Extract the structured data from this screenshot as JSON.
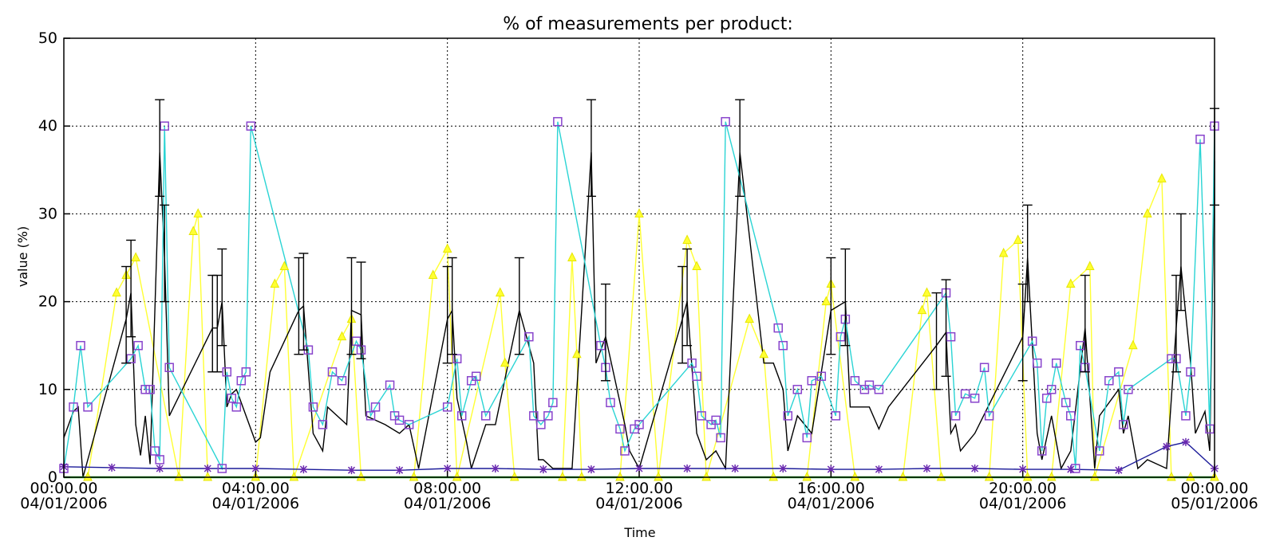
{
  "chart_data": {
    "type": "line",
    "title": "% of measurements per product:",
    "xlabel": "Time",
    "ylabel": "value (%)",
    "ylim": [
      0,
      50
    ],
    "yticks": [
      0,
      10,
      20,
      30,
      40,
      50
    ],
    "xlim_hours": [
      0,
      24
    ],
    "xticks": [
      {
        "hour": 0,
        "time": "00:00.00",
        "date": "04/01/2006"
      },
      {
        "hour": 4,
        "time": "04:00.00",
        "date": "04/01/2006"
      },
      {
        "hour": 8,
        "time": "08:00.00",
        "date": "04/01/2006"
      },
      {
        "hour": 12,
        "time": "12:00.00",
        "date": "04/01/2006"
      },
      {
        "hour": 16,
        "time": "16:00.00",
        "date": "04/01/2006"
      },
      {
        "hour": 20,
        "time": "20:00.00",
        "date": "04/01/2006"
      },
      {
        "hour": 24,
        "time": "00:00.00",
        "date": "05/01/2006"
      }
    ],
    "grid": true,
    "colors": {
      "black_series": "#000000",
      "cyan_series": "#2ad4d4",
      "yellow_series": "#ffff33",
      "green_series": "#33cc33",
      "navy_series": "#1a1a99",
      "square_marker": "#8844cc",
      "star_marker": "#6a2ab0"
    },
    "series": [
      {
        "marker": "none",
        "color": "black_series",
        "x": [
          0.0,
          0.2,
          0.3,
          0.4,
          1.3,
          1.4,
          1.5,
          1.6,
          1.7,
          1.8,
          2.0,
          2.1,
          2.2,
          3.1,
          3.2,
          3.3,
          3.4,
          3.5,
          3.6,
          4.0,
          4.1,
          4.3,
          4.9,
          5.0,
          5.2,
          5.4,
          5.5,
          5.9,
          6.0,
          6.2,
          6.3,
          6.7,
          7.0,
          7.2,
          7.4,
          8.0,
          8.1,
          8.2,
          8.4,
          8.5,
          8.8,
          9.0,
          9.5,
          9.8,
          9.9,
          10.0,
          10.2,
          10.5,
          10.6,
          11.0,
          11.1,
          11.3,
          11.7,
          11.8,
          12.0,
          12.9,
          13.0,
          13.2,
          13.4,
          13.6,
          13.8,
          14.1,
          14.6,
          14.8,
          15.0,
          15.1,
          15.3,
          15.6,
          16.0,
          16.3,
          16.4,
          16.8,
          17.0,
          17.2,
          18.2,
          18.4,
          18.5,
          18.6,
          18.7,
          19.0,
          20.0,
          20.1,
          20.3,
          20.4,
          20.6,
          20.8,
          21.0,
          21.3,
          21.4,
          21.5,
          21.6,
          22.0,
          22.1,
          22.2,
          22.4,
          22.6,
          23.0,
          23.2,
          23.3,
          23.5,
          23.6,
          23.8,
          23.9,
          24.0
        ],
        "y": [
          4.5,
          7.5,
          8.0,
          0.0,
          18.0,
          21.0,
          6.0,
          2.5,
          7.0,
          1.5,
          37.0,
          25.0,
          7.0,
          17.0,
          17.0,
          20.0,
          8.0,
          9.5,
          10.0,
          4.0,
          4.5,
          12.0,
          19.0,
          19.5,
          5.0,
          3.0,
          8.0,
          6.0,
          19.0,
          18.5,
          7.0,
          6.0,
          5.0,
          6.0,
          1.0,
          18.0,
          19.0,
          9.0,
          4.0,
          1.0,
          6.0,
          6.0,
          19.0,
          13.0,
          2.0,
          2.0,
          1.0,
          1.0,
          1.0,
          37.0,
          13.0,
          16.0,
          6.0,
          3.0,
          1.0,
          18.0,
          20.0,
          5.0,
          2.0,
          3.0,
          1.0,
          37.0,
          13.0,
          13.0,
          10.0,
          3.0,
          7.0,
          5.0,
          19.0,
          20.0,
          8.0,
          8.0,
          5.5,
          8.0,
          15.0,
          16.5,
          5.0,
          6.0,
          3.0,
          5.0,
          16.0,
          25.0,
          5.0,
          2.0,
          7.0,
          1.0,
          3.0,
          17.0,
          9.0,
          1.0,
          7.0,
          10.0,
          5.0,
          7.0,
          1.0,
          2.0,
          1.0,
          17.0,
          24.0,
          13.0,
          5.0,
          7.5,
          3.0,
          36.0
        ]
      },
      {
        "marker": "square",
        "color": "cyan_series",
        "x": [
          0.0,
          0.2,
          0.35,
          0.5,
          1.4,
          1.55,
          1.7,
          1.8,
          1.9,
          2.0,
          2.1,
          2.2,
          3.3,
          3.4,
          3.5,
          3.6,
          3.7,
          3.8,
          3.9,
          5.1,
          5.2,
          5.4,
          5.6,
          5.8,
          6.1,
          6.2,
          6.4,
          6.5,
          6.8,
          6.9,
          7.0,
          7.2,
          8.0,
          8.2,
          8.3,
          8.5,
          8.6,
          8.8,
          9.7,
          9.8,
          9.95,
          10.1,
          10.2,
          10.3,
          11.2,
          11.3,
          11.4,
          11.6,
          11.7,
          11.9,
          12.0,
          13.1,
          13.2,
          13.3,
          13.5,
          13.6,
          13.7,
          13.8,
          14.9,
          15.0,
          15.1,
          15.3,
          15.5,
          15.6,
          15.8,
          16.1,
          16.2,
          16.3,
          16.5,
          16.7,
          16.8,
          17.0,
          18.4,
          18.5,
          18.6,
          18.8,
          19.0,
          19.2,
          19.3,
          20.2,
          20.3,
          20.4,
          20.5,
          20.6,
          20.7,
          20.9,
          21.0,
          21.1,
          21.2,
          21.3,
          21.6,
          21.8,
          22.0,
          22.1,
          22.2,
          23.1,
          23.2,
          23.4,
          23.5,
          23.7,
          23.9,
          24.0
        ],
        "y": [
          1.0,
          8.0,
          15.0,
          8.0,
          13.5,
          15.0,
          10.0,
          10.0,
          3.0,
          2.0,
          40.0,
          12.5,
          1.0,
          12.0,
          9.0,
          8.0,
          11.0,
          12.0,
          40.0,
          14.5,
          8.0,
          6.0,
          12.0,
          11.0,
          15.5,
          14.5,
          7.0,
          8.0,
          10.5,
          7.0,
          6.5,
          6.0,
          8.0,
          13.5,
          7.0,
          11.0,
          11.5,
          7.0,
          16.0,
          7.0,
          6.0,
          7.0,
          8.5,
          40.5,
          15.0,
          12.5,
          8.5,
          5.5,
          3.0,
          5.5,
          6.0,
          13.0,
          11.5,
          7.0,
          6.0,
          6.5,
          4.5,
          40.5,
          17.0,
          15.0,
          7.0,
          10.0,
          4.5,
          11.0,
          11.5,
          7.0,
          16.0,
          18.0,
          11.0,
          10.0,
          10.5,
          10.0,
          21.0,
          16.0,
          7.0,
          9.5,
          9.0,
          12.5,
          7.0,
          15.5,
          13.0,
          3.0,
          9.0,
          10.0,
          13.0,
          8.5,
          7.0,
          1.0,
          15.0,
          12.5,
          3.0,
          11.0,
          12.0,
          6.0,
          10.0,
          13.5,
          13.5,
          7.0,
          12.0,
          38.5,
          5.5,
          40.0
        ]
      },
      {
        "marker": "triangle",
        "color": "yellow_series",
        "x": [
          0.5,
          1.1,
          1.3,
          1.5,
          2.4,
          2.7,
          2.8,
          3.0,
          4.0,
          4.4,
          4.6,
          4.8,
          5.8,
          6.0,
          6.2,
          7.3,
          7.7,
          8.0,
          8.2,
          9.1,
          9.2,
          9.4,
          10.4,
          10.6,
          10.7,
          10.8,
          11.6,
          12.0,
          12.4,
          13.0,
          13.2,
          13.4,
          14.3,
          14.6,
          14.8,
          15.5,
          15.9,
          16.0,
          16.5,
          17.5,
          17.9,
          18.0,
          18.3,
          19.3,
          19.6,
          19.9,
          20.1,
          20.6,
          21.0,
          21.4,
          21.5,
          22.3,
          22.6,
          22.9,
          23.1,
          23.5,
          24.0
        ],
        "y": [
          0.0,
          21.0,
          23.0,
          25.0,
          0.0,
          28.0,
          30.0,
          0.0,
          0.0,
          22.0,
          24.0,
          0.0,
          16.0,
          18.0,
          0.0,
          0.0,
          23.0,
          26.0,
          0.0,
          21.0,
          13.0,
          0.0,
          0.0,
          25.0,
          14.0,
          0.0,
          0.0,
          30.0,
          0.0,
          27.0,
          24.0,
          0.0,
          18.0,
          14.0,
          0.0,
          0.0,
          20.0,
          22.0,
          0.0,
          0.0,
          19.0,
          21.0,
          0.0,
          0.0,
          25.5,
          27.0,
          0.0,
          0.0,
          22.0,
          24.0,
          0.0,
          15.0,
          30.0,
          34.0,
          0.0,
          0.0,
          0.0
        ]
      },
      {
        "marker": "none",
        "color": "green_series",
        "x": [
          0.0,
          24.0
        ],
        "y": [
          0.0,
          0.0
        ]
      },
      {
        "marker": "star",
        "color": "navy_series",
        "x": [
          0.0,
          1.0,
          2.0,
          3.0,
          4.0,
          5.0,
          6.0,
          7.0,
          8.0,
          9.0,
          10.0,
          11.0,
          12.0,
          13.0,
          14.0,
          15.0,
          16.0,
          17.0,
          18.0,
          19.0,
          20.0,
          21.0,
          22.0,
          23.0,
          23.4,
          24.0
        ],
        "y": [
          1.2,
          1.1,
          1.0,
          1.0,
          1.0,
          0.9,
          0.8,
          0.8,
          1.0,
          1.0,
          0.9,
          0.9,
          1.0,
          1.0,
          1.0,
          1.0,
          0.9,
          0.9,
          1.0,
          1.0,
          0.9,
          0.9,
          0.8,
          3.5,
          4.0,
          1.0
        ]
      }
    ]
  }
}
